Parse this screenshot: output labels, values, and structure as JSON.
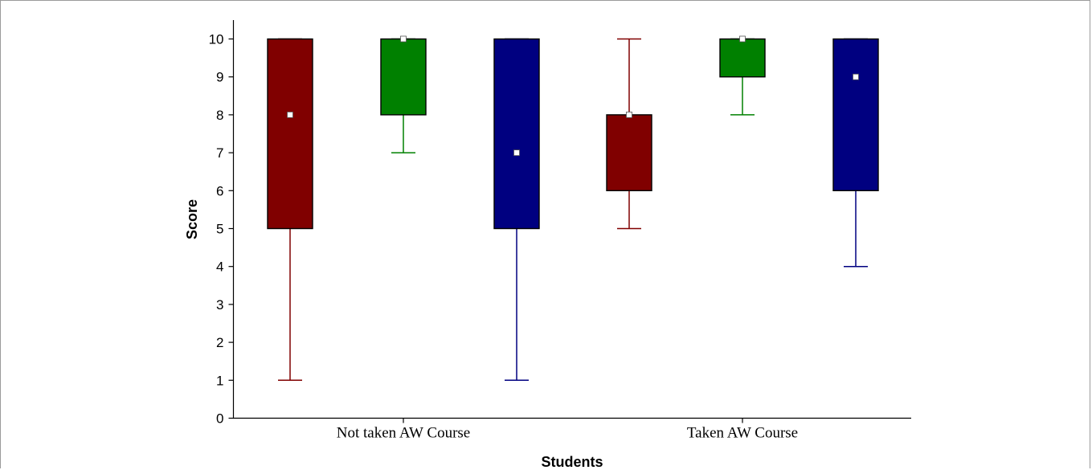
{
  "chart_data": {
    "type": "boxplot",
    "title": "",
    "xlabel": "Students",
    "ylabel": "Score",
    "ylim": [
      0,
      10
    ],
    "yticks": [
      "0",
      "1",
      "2",
      "3",
      "4",
      "5",
      "6",
      "7",
      "8",
      "9",
      "10"
    ],
    "categories": [
      "Not taken AW Course",
      "Taken AW Course"
    ],
    "grid": false,
    "legend": "none",
    "boxes": [
      {
        "category": 0,
        "color": "#800000",
        "whisker_low": 1,
        "q1": 5,
        "q3": 10,
        "whisker_high": 10,
        "median": 8
      },
      {
        "category": 0,
        "color": "#008000",
        "whisker_low": 7,
        "q1": 8,
        "q3": 10,
        "whisker_high": 10,
        "median": 10
      },
      {
        "category": 0,
        "color": "#000080",
        "whisker_low": 1,
        "q1": 5,
        "q3": 10,
        "whisker_high": 10,
        "median": 7
      },
      {
        "category": 1,
        "color": "#800000",
        "whisker_low": 5,
        "q1": 6,
        "q3": 8,
        "whisker_high": 10,
        "median": 8
      },
      {
        "category": 1,
        "color": "#008000",
        "whisker_low": 8,
        "q1": 9,
        "q3": 10,
        "whisker_high": 10,
        "median": 10
      },
      {
        "category": 1,
        "color": "#000080",
        "whisker_low": 4,
        "q1": 6,
        "q3": 10,
        "whisker_high": 10,
        "median": 9
      }
    ]
  }
}
